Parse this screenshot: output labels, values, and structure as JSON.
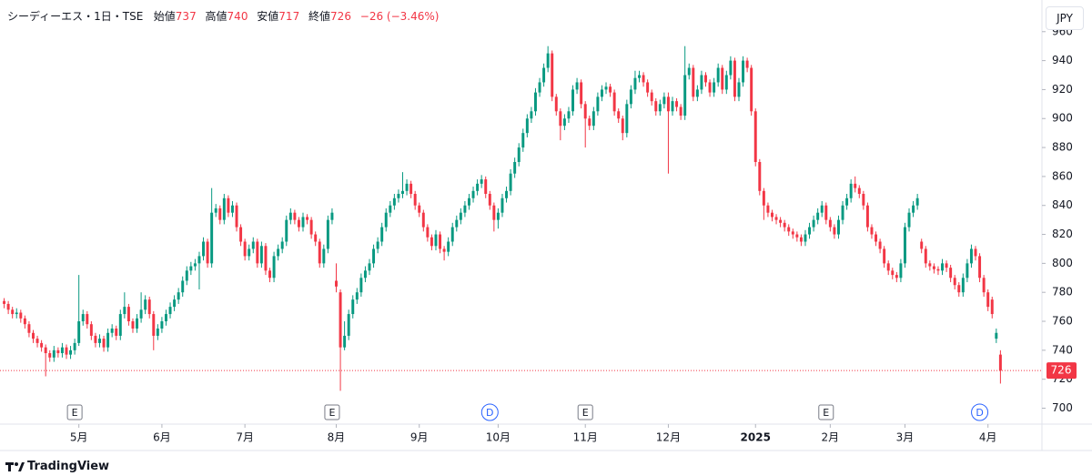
{
  "header": {
    "symbol": "シーディーエス・1日・TSE",
    "open_label": "始値",
    "high_label": "高値",
    "low_label": "安値",
    "close_label": "終値",
    "change": "−26 (−3.46%)"
  },
  "currency": "JPY",
  "brand": "TradingView",
  "chart_data": {
    "type": "candlestick",
    "up_color": "#089981",
    "down_color": "#f23645",
    "grid": false,
    "xlim": [
      -1,
      250
    ],
    "ylim": [
      689,
      963
    ],
    "yticks": [
      700,
      720,
      740,
      760,
      780,
      800,
      820,
      840,
      860,
      880,
      900,
      920,
      940,
      960
    ],
    "xticks": [
      {
        "value": 18,
        "label": "5月"
      },
      {
        "value": 38,
        "label": "6月"
      },
      {
        "value": 58,
        "label": "7月"
      },
      {
        "value": 80,
        "label": "8月"
      },
      {
        "value": 100,
        "label": "9月"
      },
      {
        "value": 119,
        "label": "10月"
      },
      {
        "value": 140,
        "label": "11月"
      },
      {
        "value": 160,
        "label": "12月"
      },
      {
        "value": 181,
        "label": "2025"
      },
      {
        "value": 199,
        "label": "2月"
      },
      {
        "value": 217,
        "label": "3月"
      },
      {
        "value": 237,
        "label": "4月"
      }
    ],
    "events": [
      {
        "index": 17,
        "label": "E"
      },
      {
        "index": 79,
        "label": "E"
      },
      {
        "index": 117,
        "label": "D"
      },
      {
        "index": 140,
        "label": "E"
      },
      {
        "index": 198,
        "label": "E"
      },
      {
        "index": 235,
        "label": "D"
      }
    ],
    "ohlc": [
      [
        774,
        776,
        769,
        772
      ],
      [
        772,
        774,
        765,
        768
      ],
      [
        768,
        770,
        762,
        765
      ],
      [
        765,
        769,
        762,
        766
      ],
      [
        766,
        768,
        759,
        762
      ],
      [
        762,
        764,
        755,
        758
      ],
      [
        758,
        760,
        749,
        752
      ],
      [
        752,
        754,
        745,
        748
      ],
      [
        748,
        750,
        742,
        745
      ],
      [
        745,
        747,
        739,
        742
      ],
      [
        742,
        744,
        722,
        738
      ],
      [
        738,
        740,
        732,
        735
      ],
      [
        735,
        743,
        732,
        740
      ],
      [
        740,
        742,
        735,
        738
      ],
      [
        738,
        745,
        735,
        742
      ],
      [
        742,
        744,
        734,
        737
      ],
      [
        737,
        743,
        734,
        740
      ],
      [
        740,
        748,
        737,
        745
      ],
      [
        745,
        792,
        743,
        760
      ],
      [
        760,
        768,
        757,
        765
      ],
      [
        765,
        767,
        755,
        758
      ],
      [
        758,
        760,
        747,
        750
      ],
      [
        750,
        752,
        742,
        745
      ],
      [
        745,
        751,
        742,
        748
      ],
      [
        748,
        750,
        739,
        742
      ],
      [
        742,
        755,
        739,
        752
      ],
      [
        752,
        758,
        749,
        755
      ],
      [
        755,
        757,
        747,
        750
      ],
      [
        750,
        768,
        747,
        765
      ],
      [
        765,
        780,
        762,
        770
      ],
      [
        770,
        772,
        757,
        760
      ],
      [
        760,
        762,
        752,
        755
      ],
      [
        755,
        765,
        752,
        762
      ],
      [
        762,
        780,
        759,
        768
      ],
      [
        768,
        778,
        765,
        775
      ],
      [
        775,
        777,
        762,
        765
      ],
      [
        765,
        767,
        740,
        750
      ],
      [
        750,
        758,
        747,
        755
      ],
      [
        755,
        763,
        752,
        760
      ],
      [
        760,
        768,
        757,
        765
      ],
      [
        765,
        773,
        762,
        770
      ],
      [
        770,
        778,
        767,
        775
      ],
      [
        775,
        783,
        772,
        780
      ],
      [
        780,
        791,
        777,
        788
      ],
      [
        788,
        798,
        785,
        795
      ],
      [
        795,
        801,
        792,
        798
      ],
      [
        798,
        803,
        795,
        800
      ],
      [
        800,
        808,
        782,
        805
      ],
      [
        805,
        818,
        802,
        815
      ],
      [
        815,
        817,
        797,
        800
      ],
      [
        800,
        852,
        797,
        835
      ],
      [
        835,
        841,
        832,
        838
      ],
      [
        838,
        840,
        827,
        830
      ],
      [
        830,
        848,
        827,
        845
      ],
      [
        845,
        847,
        832,
        835
      ],
      [
        835,
        843,
        832,
        840
      ],
      [
        840,
        842,
        822,
        825
      ],
      [
        825,
        827,
        812,
        815
      ],
      [
        815,
        817,
        802,
        805
      ],
      [
        805,
        813,
        802,
        810
      ],
      [
        810,
        818,
        807,
        815
      ],
      [
        815,
        817,
        797,
        800
      ],
      [
        800,
        815,
        797,
        812
      ],
      [
        812,
        814,
        792,
        795
      ],
      [
        795,
        797,
        787,
        790
      ],
      [
        790,
        808,
        787,
        805
      ],
      [
        805,
        813,
        802,
        810
      ],
      [
        810,
        818,
        807,
        815
      ],
      [
        815,
        833,
        812,
        830
      ],
      [
        830,
        838,
        827,
        835
      ],
      [
        835,
        837,
        827,
        830
      ],
      [
        830,
        832,
        822,
        825
      ],
      [
        825,
        835,
        822,
        832
      ],
      [
        832,
        834,
        827,
        830
      ],
      [
        830,
        832,
        817,
        820
      ],
      [
        820,
        822,
        812,
        815
      ],
      [
        815,
        817,
        797,
        800
      ],
      [
        800,
        813,
        797,
        810
      ],
      [
        810,
        833,
        807,
        830
      ],
      [
        830,
        838,
        827,
        835
      ],
      [
        788,
        800,
        780,
        784
      ],
      [
        780,
        782,
        712,
        742
      ],
      [
        742,
        760,
        740,
        750
      ],
      [
        750,
        768,
        747,
        765
      ],
      [
        765,
        778,
        762,
        775
      ],
      [
        775,
        783,
        772,
        780
      ],
      [
        780,
        793,
        777,
        790
      ],
      [
        790,
        798,
        787,
        795
      ],
      [
        795,
        803,
        792,
        800
      ],
      [
        800,
        813,
        797,
        810
      ],
      [
        810,
        818,
        807,
        815
      ],
      [
        815,
        828,
        812,
        825
      ],
      [
        825,
        838,
        822,
        835
      ],
      [
        835,
        843,
        832,
        840
      ],
      [
        840,
        848,
        837,
        845
      ],
      [
        845,
        851,
        842,
        848
      ],
      [
        848,
        863,
        845,
        850
      ],
      [
        850,
        858,
        847,
        855
      ],
      [
        855,
        857,
        845,
        848
      ],
      [
        848,
        850,
        837,
        840
      ],
      [
        840,
        842,
        832,
        835
      ],
      [
        835,
        837,
        822,
        825
      ],
      [
        825,
        827,
        815,
        818
      ],
      [
        818,
        820,
        809,
        812
      ],
      [
        812,
        823,
        809,
        820
      ],
      [
        820,
        822,
        807,
        810
      ],
      [
        810,
        812,
        802,
        808
      ],
      [
        808,
        818,
        805,
        815
      ],
      [
        815,
        828,
        812,
        825
      ],
      [
        825,
        833,
        822,
        830
      ],
      [
        830,
        838,
        827,
        835
      ],
      [
        835,
        843,
        832,
        840
      ],
      [
        840,
        848,
        837,
        845
      ],
      [
        845,
        853,
        842,
        850
      ],
      [
        850,
        858,
        847,
        855
      ],
      [
        855,
        861,
        852,
        858
      ],
      [
        858,
        860,
        845,
        848
      ],
      [
        848,
        850,
        837,
        840
      ],
      [
        840,
        842,
        822,
        830
      ],
      [
        830,
        838,
        824,
        835
      ],
      [
        835,
        848,
        832,
        845
      ],
      [
        845,
        853,
        842,
        850
      ],
      [
        850,
        865,
        847,
        862
      ],
      [
        862,
        873,
        859,
        870
      ],
      [
        870,
        883,
        867,
        880
      ],
      [
        880,
        893,
        877,
        890
      ],
      [
        890,
        903,
        887,
        900
      ],
      [
        900,
        908,
        897,
        905
      ],
      [
        905,
        921,
        902,
        918
      ],
      [
        918,
        928,
        915,
        925
      ],
      [
        925,
        938,
        922,
        935
      ],
      [
        935,
        950,
        932,
        945
      ],
      [
        945,
        947,
        912,
        915
      ],
      [
        915,
        917,
        902,
        905
      ],
      [
        905,
        907,
        885,
        895
      ],
      [
        895,
        903,
        892,
        900
      ],
      [
        900,
        908,
        897,
        905
      ],
      [
        905,
        923,
        902,
        920
      ],
      [
        920,
        928,
        917,
        925
      ],
      [
        925,
        927,
        907,
        910
      ],
      [
        910,
        912,
        880,
        900
      ],
      [
        900,
        902,
        892,
        895
      ],
      [
        895,
        908,
        892,
        905
      ],
      [
        905,
        918,
        902,
        915
      ],
      [
        915,
        923,
        912,
        920
      ],
      [
        920,
        925,
        917,
        922
      ],
      [
        922,
        924,
        915,
        918
      ],
      [
        918,
        920,
        902,
        905
      ],
      [
        905,
        907,
        897,
        900
      ],
      [
        900,
        902,
        885,
        890
      ],
      [
        890,
        913,
        887,
        910
      ],
      [
        910,
        923,
        907,
        920
      ],
      [
        920,
        933,
        917,
        928
      ],
      [
        928,
        933,
        925,
        930
      ],
      [
        930,
        932,
        922,
        925
      ],
      [
        925,
        927,
        915,
        918
      ],
      [
        918,
        920,
        909,
        912
      ],
      [
        912,
        914,
        902,
        905
      ],
      [
        905,
        913,
        902,
        910
      ],
      [
        910,
        918,
        907,
        915
      ],
      [
        915,
        918,
        862,
        905
      ],
      [
        905,
        915,
        902,
        912
      ],
      [
        912,
        914,
        905,
        908
      ],
      [
        908,
        910,
        899,
        902
      ],
      [
        902,
        950,
        899,
        930
      ],
      [
        930,
        938,
        927,
        935
      ],
      [
        935,
        937,
        912,
        915
      ],
      [
        915,
        923,
        912,
        920
      ],
      [
        920,
        933,
        917,
        930
      ],
      [
        930,
        932,
        922,
        925
      ],
      [
        925,
        927,
        915,
        918
      ],
      [
        918,
        928,
        915,
        925
      ],
      [
        925,
        938,
        922,
        935
      ],
      [
        935,
        937,
        917,
        920
      ],
      [
        920,
        933,
        917,
        930
      ],
      [
        930,
        943,
        927,
        940
      ],
      [
        940,
        942,
        912,
        915
      ],
      [
        915,
        928,
        912,
        925
      ],
      [
        925,
        943,
        922,
        940
      ],
      [
        940,
        942,
        932,
        935
      ],
      [
        935,
        937,
        902,
        905
      ],
      [
        905,
        907,
        867,
        870
      ],
      [
        870,
        872,
        847,
        850
      ],
      [
        850,
        852,
        830,
        840
      ],
      [
        840,
        842,
        832,
        835
      ],
      [
        835,
        837,
        829,
        832
      ],
      [
        832,
        834,
        827,
        830
      ],
      [
        830,
        832,
        825,
        828
      ],
      [
        828,
        830,
        822,
        825
      ],
      [
        825,
        827,
        819,
        822
      ],
      [
        822,
        824,
        817,
        820
      ],
      [
        820,
        822,
        815,
        818
      ],
      [
        818,
        820,
        812,
        815
      ],
      [
        815,
        823,
        812,
        820
      ],
      [
        820,
        828,
        817,
        825
      ],
      [
        825,
        833,
        822,
        830
      ],
      [
        830,
        838,
        827,
        835
      ],
      [
        835,
        843,
        832,
        840
      ],
      [
        840,
        842,
        827,
        830
      ],
      [
        830,
        832,
        822,
        825
      ],
      [
        825,
        827,
        817,
        820
      ],
      [
        820,
        833,
        817,
        830
      ],
      [
        830,
        843,
        827,
        840
      ],
      [
        840,
        848,
        837,
        845
      ],
      [
        845,
        858,
        842,
        855
      ],
      [
        855,
        860,
        849,
        852
      ],
      [
        852,
        854,
        845,
        848
      ],
      [
        848,
        850,
        837,
        840
      ],
      [
        840,
        842,
        822,
        825
      ],
      [
        825,
        827,
        817,
        820
      ],
      [
        820,
        822,
        812,
        815
      ],
      [
        815,
        817,
        807,
        810
      ],
      [
        810,
        812,
        797,
        800
      ],
      [
        800,
        802,
        792,
        795
      ],
      [
        795,
        797,
        789,
        792
      ],
      [
        792,
        794,
        787,
        790
      ],
      [
        790,
        803,
        787,
        800
      ],
      [
        800,
        828,
        797,
        825
      ],
      [
        825,
        838,
        822,
        835
      ],
      [
        835,
        843,
        832,
        840
      ],
      [
        840,
        848,
        837,
        845
      ],
      [
        815,
        817,
        807,
        810
      ],
      [
        810,
        812,
        797,
        800
      ],
      [
        800,
        802,
        795,
        798
      ],
      [
        798,
        800,
        793,
        796
      ],
      [
        796,
        798,
        792,
        795
      ],
      [
        795,
        803,
        792,
        800
      ],
      [
        800,
        802,
        794,
        797
      ],
      [
        797,
        799,
        787,
        790
      ],
      [
        790,
        792,
        782,
        785
      ],
      [
        785,
        787,
        777,
        780
      ],
      [
        780,
        793,
        777,
        790
      ],
      [
        790,
        803,
        787,
        800
      ],
      [
        800,
        813,
        797,
        810
      ],
      [
        810,
        812,
        802,
        805
      ],
      [
        805,
        807,
        787,
        790
      ],
      [
        790,
        792,
        777,
        780
      ],
      [
        780,
        782,
        767,
        770
      ],
      [
        775,
        777,
        762,
        765
      ],
      [
        748,
        755,
        745,
        752
      ],
      [
        737,
        740,
        717,
        726
      ]
    ]
  }
}
